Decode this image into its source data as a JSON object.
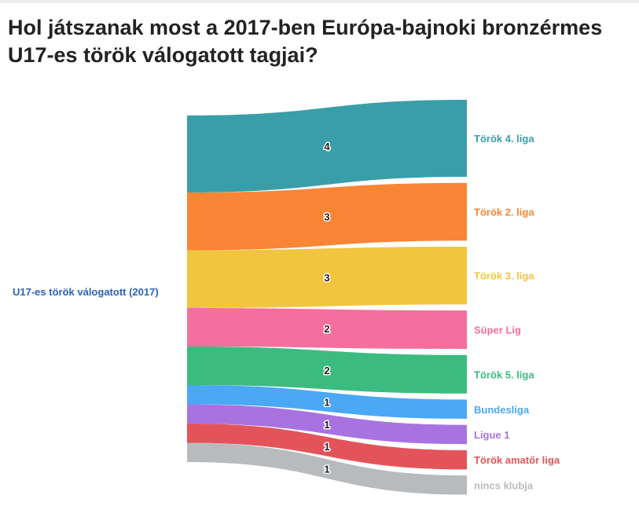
{
  "title": "Hol játszanak most a 2017-ben Európa-bajnoki bronzérmes U17-es török válogatott tagjai?",
  "chart_data": {
    "type": "sankey",
    "title": "Hol játszanak most a 2017-ben Európa-bajnoki bronzérmes U17-es török válogatott tagjai?",
    "source": "U17-es török válogatott (2017)",
    "source_color": "#2a62b8",
    "flows": [
      {
        "target": "Török 4. liga",
        "value": 4,
        "color": "#3a9ea9"
      },
      {
        "target": "Török 2. liga",
        "value": 3,
        "color": "#f98536"
      },
      {
        "target": "Török 3. liga",
        "value": 3,
        "color": "#f2c53e"
      },
      {
        "target": "Süper Lig",
        "value": 2,
        "color": "#f46f9d"
      },
      {
        "target": "Török 5. liga",
        "value": 2,
        "color": "#3cbb80"
      },
      {
        "target": "Bundesliga",
        "value": 1,
        "color": "#4aa8f6"
      },
      {
        "target": "Ligue 1",
        "value": 1,
        "color": "#a873e0"
      },
      {
        "target": "Török amatőr liga",
        "value": 1,
        "color": "#e3545a"
      },
      {
        "target": "nincs klubja",
        "value": 1,
        "color": "#b8bbbe"
      }
    ]
  }
}
